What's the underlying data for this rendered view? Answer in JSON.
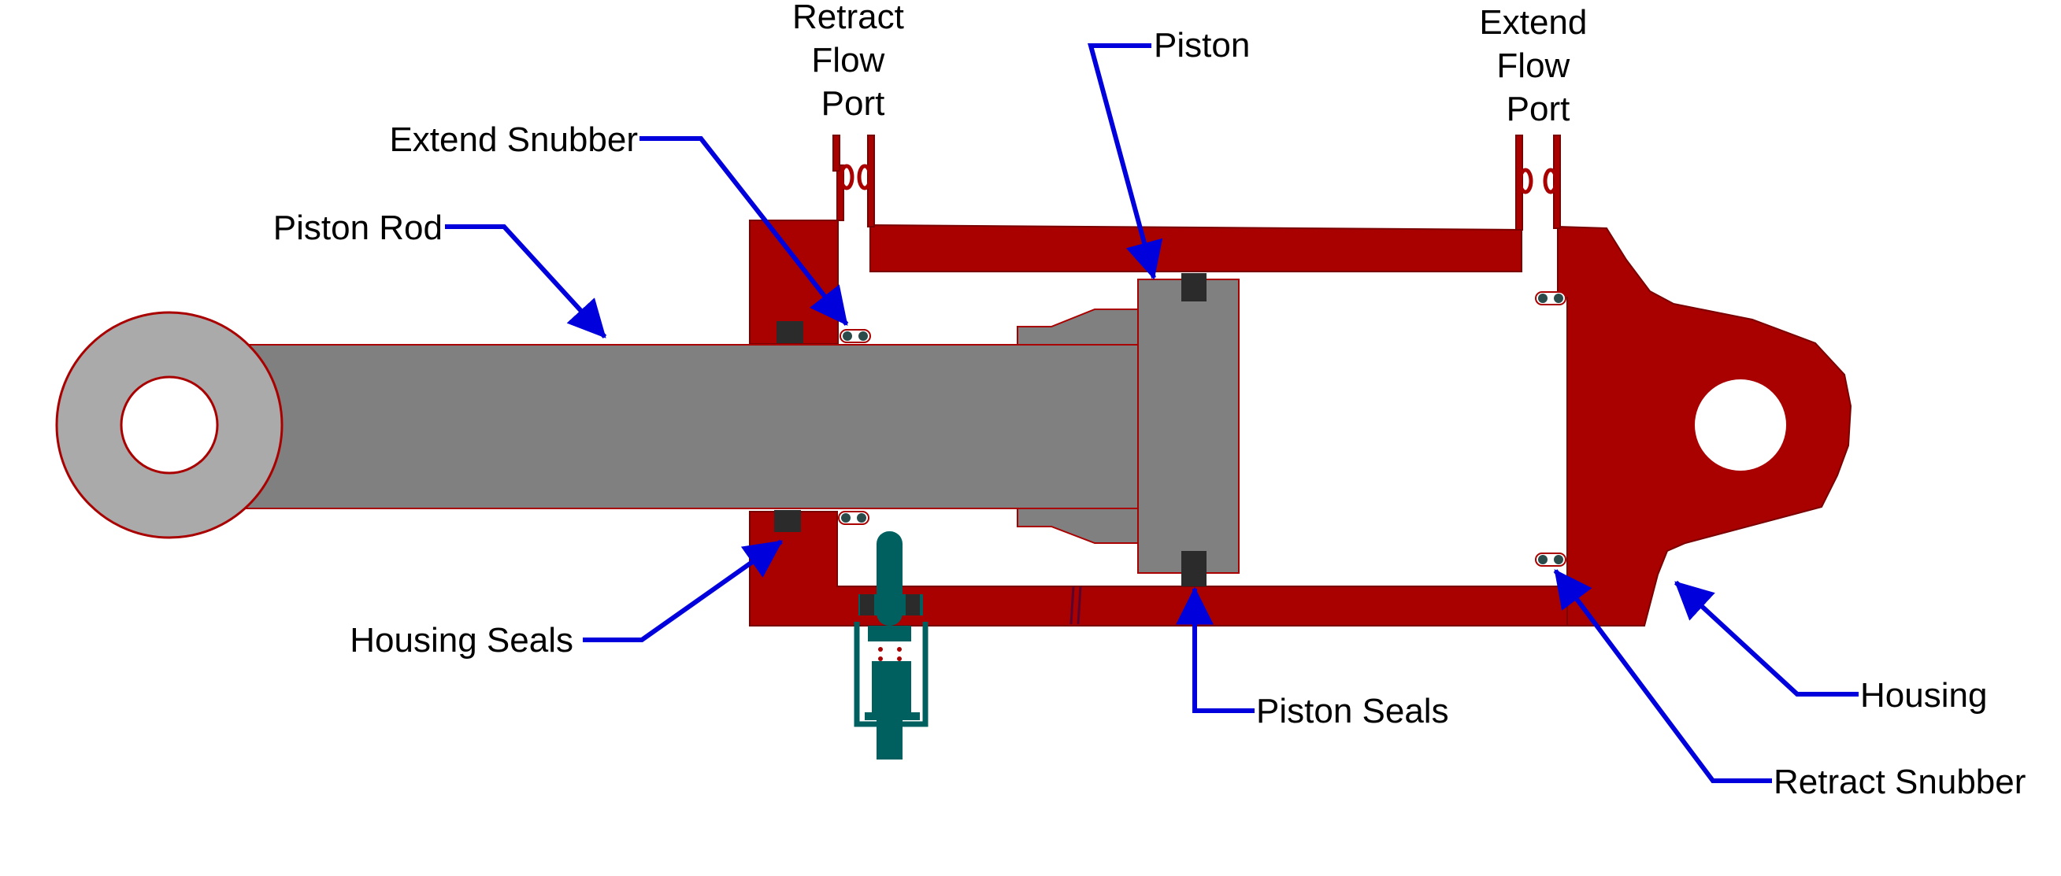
{
  "labels": {
    "retract_flow_port": [
      "Retract",
      "Flow",
      "Port"
    ],
    "extend_flow_port": [
      "Extend",
      "Flow",
      "Port"
    ],
    "piston": "Piston",
    "extend_snubber": "Extend Snubber",
    "piston_rod": "Piston Rod",
    "housing_seals": "Housing Seals",
    "piston_seals": "Piston Seals",
    "housing": "Housing",
    "retract_snubber": "Retract Snubber"
  },
  "colors": {
    "housing": "#a90000",
    "housing_outline": "#7a0000",
    "rod": "#808080",
    "rod_eye": "#aaaaaa",
    "seal": "#2b2b2b",
    "valve": "#006060",
    "leader": "#0000dd",
    "background": "#ffffff"
  }
}
